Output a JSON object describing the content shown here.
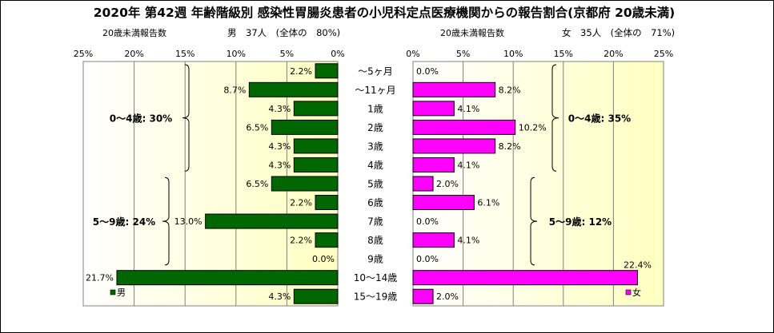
{
  "chart_data": {
    "type": "bar",
    "title": "2020年 第42週 年齢階級別 感染性胃腸炎患者の小児科定点医療機関からの報告割合(京都府 20歳未満)",
    "categories": [
      "～5ヶ月",
      "～11ヶ月",
      "1歳",
      "2歳",
      "3歳",
      "4歳",
      "5歳",
      "6歳",
      "7歳",
      "8歳",
      "9歳",
      "10～14歳",
      "15～19歳"
    ],
    "xlim": [
      0,
      25
    ],
    "ticks": [
      0,
      5,
      10,
      15,
      20,
      25
    ],
    "grid": true,
    "series": [
      {
        "name": "男",
        "values": [
          2.2,
          8.7,
          4.3,
          6.5,
          4.3,
          4.3,
          6.5,
          2.2,
          13.0,
          2.2,
          0.0,
          21.7,
          4.3
        ],
        "value_labels": [
          "2.2%",
          "8.7%",
          "4.3%",
          "6.5%",
          "4.3%",
          "4.3%",
          "6.5%",
          "2.2%",
          "13.0%",
          "2.2%",
          "0.0%",
          "21.7%",
          "4.3%"
        ],
        "color": "#006600",
        "header_left": "20歳未満報告数",
        "header_right": "男　37人　(全体の　80%)",
        "groups": [
          {
            "label": "0～4歳: 30%",
            "from": 0,
            "to": 5
          },
          {
            "label": "5～9歳: 24%",
            "from": 6,
            "to": 10
          }
        ]
      },
      {
        "name": "女",
        "values": [
          0.0,
          8.2,
          4.1,
          10.2,
          8.2,
          4.1,
          2.0,
          6.1,
          0.0,
          4.1,
          0.0,
          22.4,
          2.0
        ],
        "value_labels": [
          "0.0%",
          "8.2%",
          "4.1%",
          "10.2%",
          "8.2%",
          "4.1%",
          "2.0%",
          "6.1%",
          "0.0%",
          "4.1%",
          "0.0%",
          "22.4%",
          "2.0%"
        ],
        "color": "#ff00ff",
        "header_left": "20歳未満報告数",
        "header_right": "女　35人　(全体の　71%)",
        "groups": [
          {
            "label": "0～4歳: 35%",
            "from": 0,
            "to": 5
          },
          {
            "label": "5～9歳: 12%",
            "from": 6,
            "to": 10
          }
        ]
      }
    ]
  }
}
